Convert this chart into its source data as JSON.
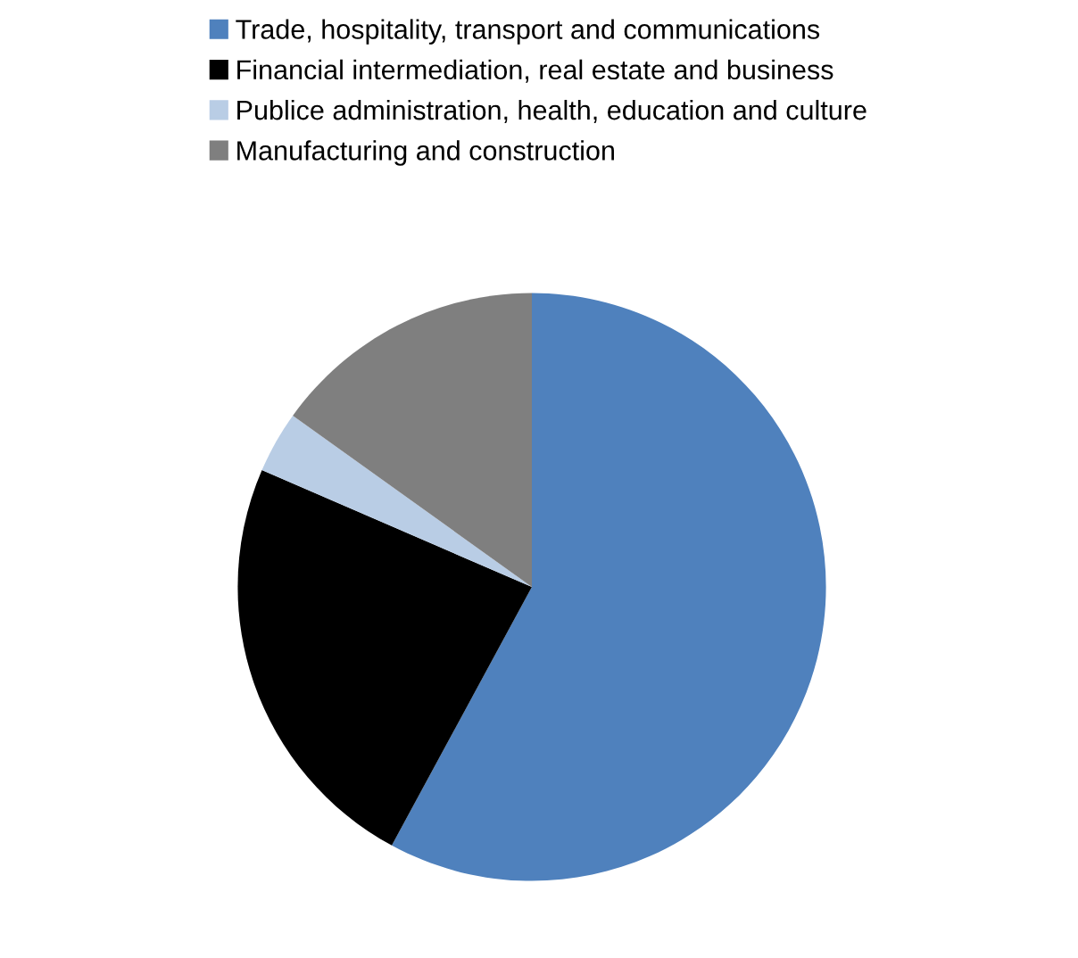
{
  "chart_data": {
    "type": "pie",
    "categories": [
      "Trade, hospitality, transport and communications",
      "Financial intermediation, real estate and business",
      "Publice administration, health, education and culture",
      "Manufacturing and construction"
    ],
    "values": [
      57.9,
      23.6,
      3.4,
      15.1
    ],
    "colors": [
      "#4f81bd",
      "#000000",
      "#b9cde5",
      "#7f7f7f"
    ],
    "legend": "top"
  }
}
